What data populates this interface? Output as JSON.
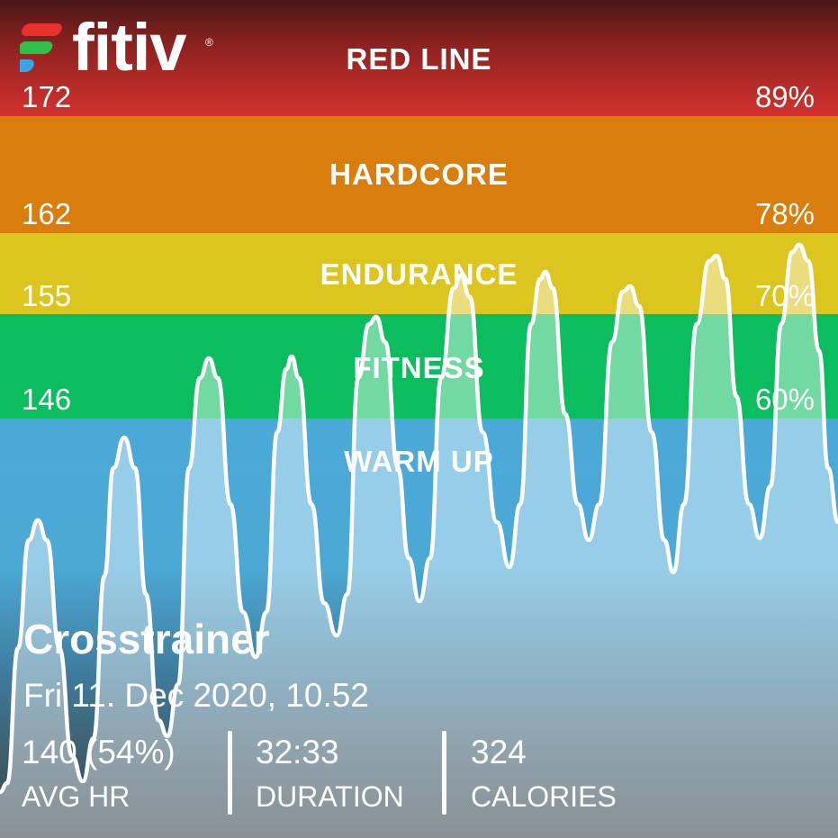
{
  "brand": {
    "name": "fitiv",
    "trademark": "®",
    "colors": {
      "red": "#e8302c",
      "green": "#2fbf4b",
      "blue": "#3aa6e6"
    }
  },
  "zones": [
    {
      "id": "redline",
      "name": "RED LINE",
      "bpm": "172",
      "pct": "89%",
      "color": "#d4322e"
    },
    {
      "id": "hardcore",
      "name": "HARDCORE",
      "bpm": "162",
      "pct": "78%",
      "color": "#d97e0c"
    },
    {
      "id": "endurance",
      "name": "ENDURANCE",
      "bpm": "155",
      "pct": "70%",
      "color": "#dcc51f"
    },
    {
      "id": "fitness",
      "name": "FITNESS",
      "bpm": "146",
      "pct": "60%",
      "color": "#0bbd5e"
    },
    {
      "id": "warmup",
      "name": "WARM UP",
      "color": "#4ba9d8"
    }
  ],
  "workout": {
    "title": "Crosstrainer",
    "datetime": "Fri 11. Dec 2020, 10.52",
    "stats": [
      {
        "value": "140 (54%)",
        "label": "AVG HR"
      },
      {
        "value": "32:33",
        "label": "DURATION"
      },
      {
        "value": "324",
        "label": "CALORIES"
      }
    ]
  }
}
